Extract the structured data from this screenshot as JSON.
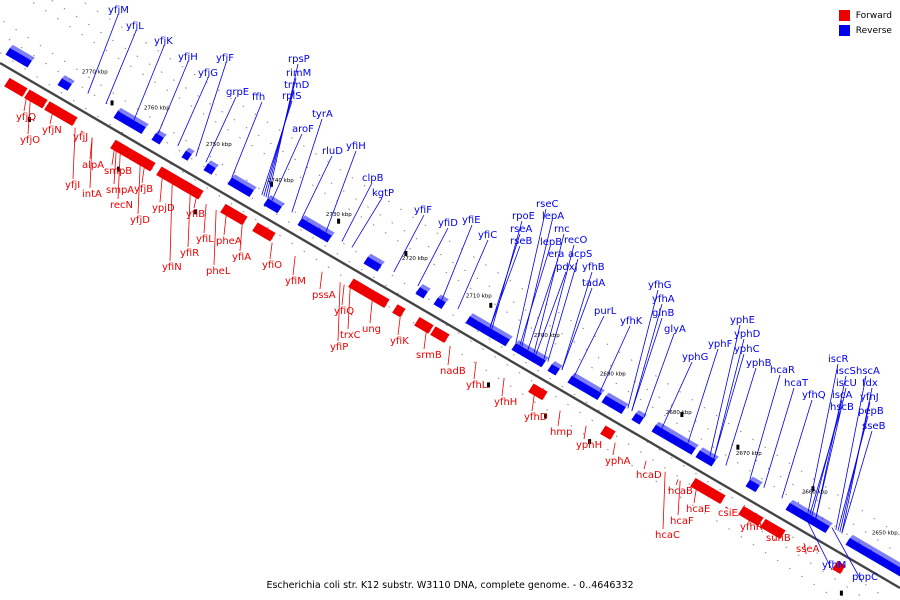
{
  "legend": {
    "forward_label": "Forward",
    "reverse_label": "Reverse",
    "forward_color": "#ee0000",
    "reverse_color": "#0000ee"
  },
  "caption": "Escherichia coli str. K12 substr. W3110 DNA, complete genome. - 0..4646332",
  "axis_ticks": [
    "2770 kbp",
    "2760 kbp",
    "2750 kbp",
    "2740 kbp",
    "2730 kbp",
    "2720 kbp",
    "2710 kbp",
    "2700 kbp",
    "2690 kbp",
    "2680 kbp",
    "2670 kbp",
    "2660 kbp",
    "2650 kbp"
  ],
  "forward_labels": [
    "yfjQ",
    "yfjO",
    "yfjN",
    "yfjJ",
    "alpA",
    "yfjI",
    "intA",
    "smpB",
    "smpA",
    "recN",
    "yfjB",
    "yfjD",
    "ypjD",
    "yfiB",
    "yfiL",
    "yfiR",
    "yfiN",
    "pheA",
    "pheL",
    "yfiA",
    "yfiO",
    "yfiM",
    "pssA",
    "yfiQ",
    "trxC",
    "yfiP",
    "ung",
    "yfiK",
    "srmB",
    "nadB",
    "yfhL",
    "yfhH",
    "yfhD",
    "hmp",
    "yphH",
    "yphA",
    "hcaD",
    "hcaB",
    "hcaE",
    "hcaF",
    "hcaC",
    "csiE",
    "yfhR",
    "suhB",
    "sseA"
  ],
  "reverse_labels": [
    "yfjM",
    "yfjL",
    "yfjK",
    "yfjH",
    "yfjG",
    "yfjF",
    "rpsP",
    "rimM",
    "trmD",
    "rplS",
    "grpE",
    "ffh",
    "tyrA",
    "aroF",
    "yfiH",
    "rluD",
    "clpB",
    "kgtP",
    "yfiF",
    "yfiD",
    "yfiE",
    "yfiC",
    "rseC",
    "rpoE",
    "lepA",
    "rseA",
    "rnc",
    "rseB",
    "lepB",
    "recO",
    "era",
    "acpS",
    "pdxJ",
    "yfhB",
    "tadA",
    "purL",
    "yfhG",
    "yfhA",
    "yfhK",
    "glnB",
    "glyA",
    "yphE",
    "yphD",
    "yphF",
    "yphC",
    "yphG",
    "yphB",
    "hcaR",
    "hcaT",
    "yfhQ",
    "iscR",
    "iscS",
    "hscA",
    "iscU",
    "fdx",
    "iscA",
    "yfhJ",
    "hscB",
    "pepB",
    "sseB",
    "yfhM",
    "pbpC"
  ]
}
